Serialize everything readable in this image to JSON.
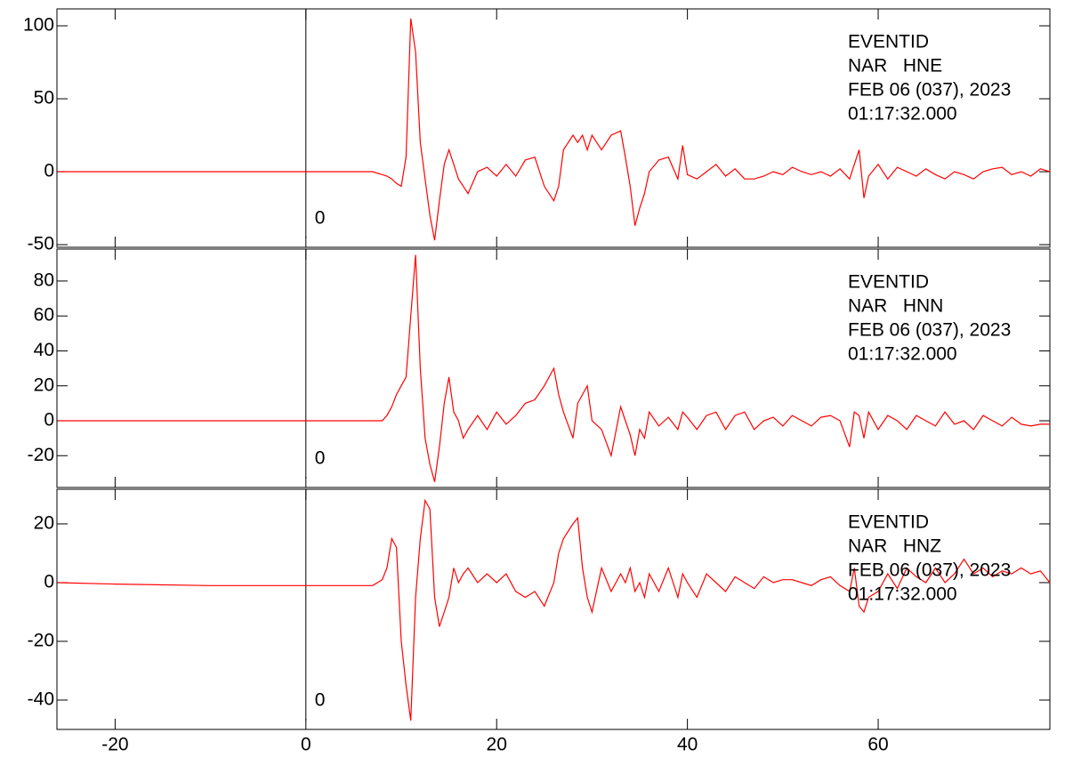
{
  "chart_data": [
    {
      "type": "line",
      "color": "#ff0000",
      "annotation": [
        "EVENTID",
        "NAR   HNE",
        "FEB 06 (037), 2023",
        "01:17:32.000"
      ],
      "marker": {
        "x": 0,
        "label": "0"
      },
      "xlim": [
        -26.1,
        78
      ],
      "xticks": [
        -20,
        0,
        20,
        40,
        60
      ],
      "xtick_labels": false,
      "ylim": [
        -51.8,
        111.6
      ],
      "yticks": [
        -50,
        0,
        50,
        100
      ],
      "x": [
        -26,
        -20,
        -10,
        0,
        5,
        7,
        8,
        8.5,
        9,
        9.5,
        10,
        10.5,
        11,
        11.5,
        12,
        12.5,
        13,
        13.5,
        14,
        14.5,
        15,
        15.5,
        16,
        16.5,
        17,
        18,
        19,
        20,
        21,
        22,
        23,
        24,
        25,
        26,
        26.5,
        27,
        28,
        28.5,
        29,
        29.5,
        30,
        31,
        32,
        33,
        33.5,
        34,
        34.5,
        35,
        35.5,
        36,
        37,
        38,
        39,
        39.5,
        40,
        41,
        42,
        43,
        44,
        45,
        46,
        47,
        48,
        49,
        50,
        51,
        52,
        53,
        54,
        55,
        56,
        57,
        57.5,
        58,
        58.5,
        59,
        60,
        61,
        62,
        63,
        64,
        65,
        66,
        67,
        68,
        69,
        70,
        71,
        72,
        73,
        74,
        75,
        76,
        77,
        78
      ],
      "values": [
        0,
        0,
        0,
        0,
        0,
        0,
        -2,
        -3,
        -5,
        -8,
        -10,
        10,
        105,
        82,
        20,
        -5,
        -30,
        -47,
        -20,
        5,
        15,
        5,
        -5,
        -10,
        -15,
        0,
        3,
        -3,
        5,
        -3,
        8,
        10,
        -10,
        -20,
        -10,
        15,
        25,
        20,
        25,
        15,
        25,
        15,
        25,
        28,
        10,
        -10,
        -37,
        -25,
        -15,
        0,
        8,
        10,
        -5,
        18,
        -2,
        -5,
        0,
        5,
        -3,
        2,
        -5,
        -5,
        -3,
        0,
        -2,
        3,
        0,
        -2,
        0,
        -3,
        2,
        -5,
        5,
        15,
        -18,
        -3,
        5,
        -5,
        3,
        0,
        -3,
        2,
        -2,
        -5,
        0,
        -2,
        -5,
        0,
        2,
        3,
        -2,
        0,
        -3,
        2,
        0
      ]
    },
    {
      "type": "line",
      "color": "#ff0000",
      "annotation": [
        "EVENTID",
        "NAR   HNN",
        "FEB 06 (037), 2023",
        "01:17:32.000"
      ],
      "marker": {
        "x": 0,
        "label": "0"
      },
      "xlim": [
        -26.1,
        78
      ],
      "xticks": [
        -20,
        0,
        20,
        40,
        60
      ],
      "xtick_labels": false,
      "ylim": [
        -38.2,
        98.3
      ],
      "yticks": [
        -20,
        0,
        20,
        40,
        60,
        80
      ],
      "x": [
        -26,
        -20,
        -10,
        0,
        5,
        7,
        8,
        8.5,
        9,
        9.5,
        10,
        10.5,
        11,
        11.5,
        12,
        12.5,
        13,
        13.5,
        14,
        14.5,
        15,
        15.5,
        16,
        16.5,
        17,
        18,
        19,
        20,
        21,
        22,
        23,
        24,
        25,
        26,
        26.5,
        27,
        28,
        28.5,
        29,
        29.5,
        30,
        31,
        32,
        33,
        33.5,
        34,
        34.5,
        35,
        35.5,
        36,
        37,
        38,
        39,
        39.5,
        40,
        41,
        42,
        43,
        44,
        45,
        46,
        47,
        48,
        49,
        50,
        51,
        52,
        53,
        54,
        55,
        56,
        57,
        57.5,
        58,
        58.5,
        59,
        60,
        61,
        62,
        63,
        64,
        65,
        66,
        67,
        68,
        69,
        70,
        71,
        72,
        73,
        74,
        75,
        76,
        77,
        78
      ],
      "values": [
        0,
        0,
        0,
        0,
        0,
        0,
        0,
        3,
        8,
        15,
        20,
        25,
        60,
        95,
        30,
        -10,
        -25,
        -35,
        -15,
        10,
        25,
        5,
        0,
        -10,
        -5,
        3,
        -5,
        5,
        -2,
        3,
        10,
        12,
        20,
        30,
        15,
        5,
        -10,
        10,
        15,
        20,
        0,
        -5,
        -20,
        8,
        0,
        -8,
        -20,
        -5,
        -10,
        5,
        -3,
        2,
        -5,
        5,
        2,
        -5,
        3,
        5,
        -5,
        3,
        5,
        -5,
        0,
        2,
        -3,
        3,
        0,
        -3,
        2,
        3,
        0,
        -15,
        5,
        3,
        -10,
        5,
        -5,
        3,
        0,
        -5,
        3,
        0,
        -3,
        5,
        -2,
        0,
        -5,
        3,
        0,
        -3,
        2,
        -2,
        -3,
        -2,
        -2
      ]
    },
    {
      "type": "line",
      "color": "#ff0000",
      "annotation": [
        "EVENTID",
        "NAR   HNZ",
        "FEB 06 (037), 2023",
        "01:17:32.000"
      ],
      "marker": {
        "x": 0,
        "label": "0"
      },
      "xlim": [
        -26.1,
        78
      ],
      "xticks": [
        -20,
        0,
        20,
        40,
        60
      ],
      "xtick_labels": true,
      "ylim": [
        -50,
        31.8
      ],
      "yticks": [
        -40,
        -20,
        0,
        20
      ],
      "x": [
        -26,
        -20,
        -10,
        0,
        5,
        7,
        8,
        8.5,
        9,
        9.5,
        10,
        10.5,
        11,
        11.5,
        12,
        12.5,
        13,
        13.5,
        14,
        14.5,
        15,
        15.5,
        16,
        16.5,
        17,
        18,
        19,
        20,
        21,
        22,
        23,
        24,
        25,
        26,
        26.5,
        27,
        28,
        28.5,
        29,
        29.5,
        30,
        31,
        32,
        33,
        33.5,
        34,
        34.5,
        35,
        35.5,
        36,
        37,
        38,
        39,
        39.5,
        40,
        41,
        42,
        43,
        44,
        45,
        46,
        47,
        48,
        49,
        50,
        51,
        52,
        53,
        54,
        55,
        56,
        57,
        57.5,
        58,
        58.5,
        59,
        60,
        61,
        62,
        63,
        64,
        65,
        66,
        67,
        68,
        69,
        70,
        71,
        72,
        73,
        74,
        75,
        76,
        77,
        78
      ],
      "values": [
        0,
        -0.5,
        -1,
        -1,
        -1,
        -1,
        1,
        5,
        15,
        12,
        -20,
        -35,
        -47,
        -5,
        15,
        28,
        25,
        -5,
        -15,
        -10,
        -5,
        5,
        0,
        3,
        5,
        0,
        3,
        0,
        3,
        -3,
        -5,
        -3,
        -8,
        0,
        10,
        15,
        20,
        22,
        5,
        -5,
        -10,
        5,
        -3,
        3,
        0,
        5,
        -3,
        0,
        -5,
        3,
        -3,
        5,
        -5,
        3,
        0,
        -5,
        3,
        0,
        -3,
        2,
        0,
        -2,
        2,
        0,
        1,
        1,
        0,
        -1,
        1,
        2,
        -1,
        -3,
        5,
        -8,
        -10,
        -5,
        -3,
        3,
        -2,
        5,
        2,
        0,
        5,
        0,
        3,
        8,
        3,
        5,
        2,
        4,
        3,
        5,
        3,
        4,
        0
      ]
    }
  ]
}
